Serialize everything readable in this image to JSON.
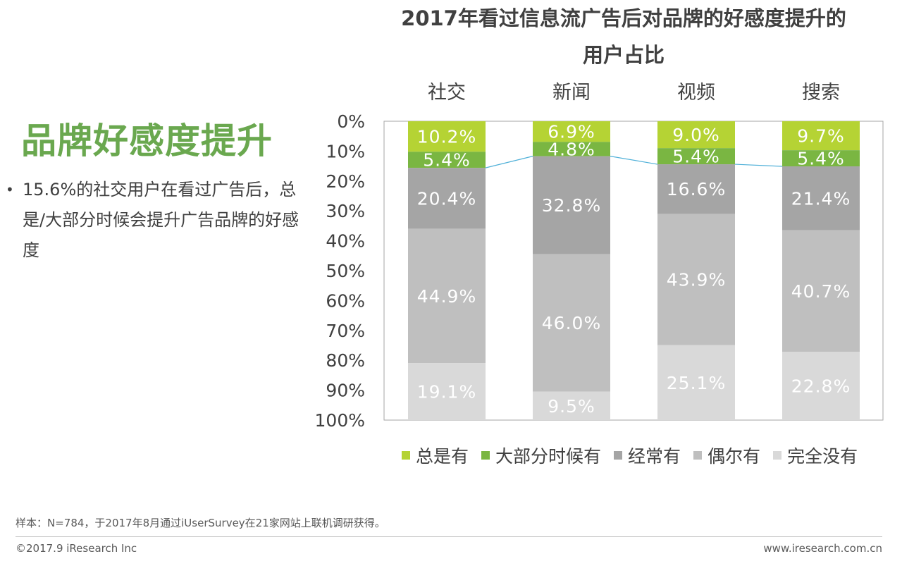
{
  "headline": "品牌好感度提升",
  "bullet": "15.6%的社交用户在看过广告后，总是/大部分时候会提升广告品牌的好感度",
  "bullet_marker": "•",
  "footnote": "样本：N=784，于2017年8月通过iUserSurvey在21家网站上联机调研获得。",
  "copyright": "©2017.9 iResearch Inc",
  "website": "www.iresearch.com.cn",
  "colors": {
    "总是有": "#b5d334",
    "大部分时候有": "#7ab642",
    "经常有": "#a5a5a5",
    "偶尔有": "#bfbfbf",
    "完全没有": "#d9d9d9",
    "connector": "#4fb0d8"
  },
  "chart_data": {
    "type": "bar",
    "stacked": true,
    "orientation": "vertical-top-down",
    "title": "2017年看过信息流广告后对品牌的好感度提升的用户占比",
    "title_lines": [
      "2017年看过信息流广告后对品牌的好感度提升的",
      "用户占比"
    ],
    "categories": [
      "社交",
      "新闻",
      "视频",
      "搜索"
    ],
    "y_ticks": [
      "0%",
      "10%",
      "20%",
      "30%",
      "40%",
      "50%",
      "60%",
      "70%",
      "80%",
      "90%",
      "100%"
    ],
    "ylim": [
      0,
      100
    ],
    "legend_position": "bottom",
    "series": [
      {
        "name": "总是有",
        "values": [
          10.2,
          6.9,
          9.0,
          9.7
        ],
        "labels": [
          "10.2%",
          "6.9%",
          "9.0%",
          "9.7%"
        ]
      },
      {
        "name": "大部分时候有",
        "values": [
          5.4,
          4.8,
          5.4,
          5.4
        ],
        "labels": [
          "5.4%",
          "4.8%",
          "5.4%",
          "5.4%"
        ]
      },
      {
        "name": "经常有",
        "values": [
          20.4,
          32.8,
          16.6,
          21.4
        ],
        "labels": [
          "20.4%",
          "32.8%",
          "16.6%",
          "21.4%"
        ]
      },
      {
        "name": "偶尔有",
        "values": [
          44.9,
          46.0,
          43.9,
          40.7
        ],
        "labels": [
          "44.9%",
          "46.0%",
          "43.9%",
          "40.7%"
        ]
      },
      {
        "name": "完全没有",
        "values": [
          19.1,
          9.5,
          25.1,
          22.8
        ],
        "labels": [
          "19.1%",
          "9.5%",
          "25.1%",
          "22.8%"
        ]
      }
    ],
    "connector_after_series": "大部分时候有"
  }
}
